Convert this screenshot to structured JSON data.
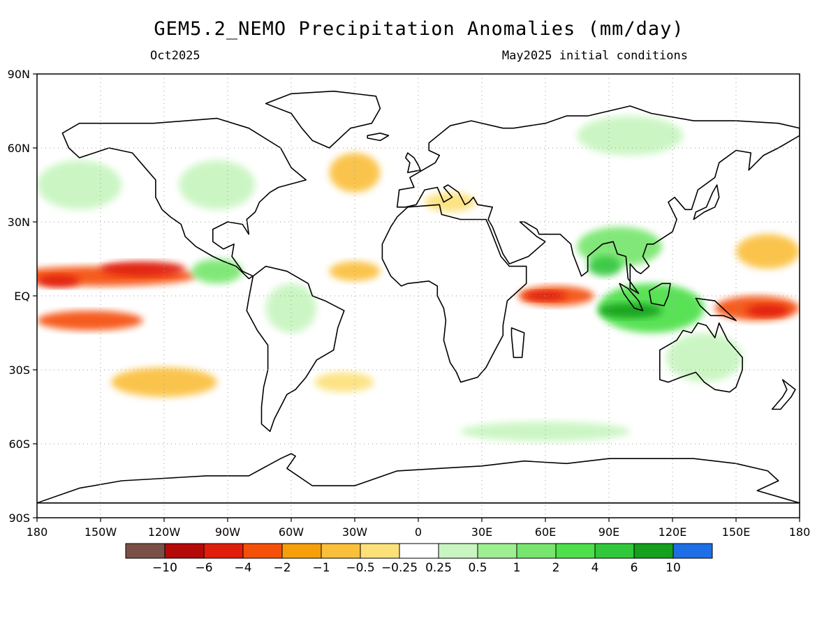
{
  "figure": {
    "title": "GEM5.2_NEMO Precipitation Anomalies (mm/day)",
    "valid_month": "Oct2025",
    "init": "May2025 initial conditions"
  },
  "axes": {
    "lat_labels": [
      "90N",
      "60N",
      "30N",
      "EQ",
      "30S",
      "60S",
      "90S"
    ],
    "lat_values": [
      90,
      60,
      30,
      0,
      -30,
      -60,
      -90
    ],
    "lon_labels": [
      "180",
      "150W",
      "120W",
      "90W",
      "60W",
      "30W",
      "0",
      "30E",
      "60E",
      "90E",
      "120E",
      "150E",
      "180"
    ],
    "lon_values": [
      -180,
      -150,
      -120,
      -90,
      -60,
      -30,
      0,
      30,
      60,
      90,
      120,
      150,
      180
    ]
  },
  "colors": {
    "anom": {
      "brown": "#7a5046",
      "dark_red": "#b40a0a",
      "red": "#e01e0c",
      "red_orange": "#f5500a",
      "orange": "#f5a00a",
      "light_orange": "#fac03c",
      "yellow": "#fce17a",
      "white": "#ffffff",
      "pale_green": "#c8f5c0",
      "light_green": "#9eee92",
      "green": "#78e66e",
      "mid_green": "#4ee04a",
      "deep_green": "#32c83c",
      "dark_green": "#15a01e",
      "blue": "#1e6ee6"
    }
  },
  "colorbar": {
    "colors": [
      "#7a5046",
      "#b40a0a",
      "#e01e0c",
      "#f5500a",
      "#f5a00a",
      "#fac03c",
      "#fce17a",
      "#ffffff",
      "#c8f5c0",
      "#9eee92",
      "#78e66e",
      "#4ee04a",
      "#32c83c",
      "#15a01e",
      "#1e6ee6"
    ],
    "labels": [
      "−10",
      "−6",
      "−4",
      "−2",
      "−1",
      "−0.5",
      "−0.25",
      "0.25",
      "0.5",
      "1",
      "2",
      "4",
      "6",
      "10"
    ]
  },
  "regions": [
    {
      "name": "pacific-itcz-dry",
      "lon": -150,
      "lat": 8,
      "rx": 45,
      "ry": 4,
      "level": "red_orange"
    },
    {
      "name": "pacific-itcz-dry-core",
      "lon": -130,
      "lat": 11,
      "rx": 20,
      "ry": 3,
      "level": "red"
    },
    {
      "name": "pacific-itcz-dry-west",
      "lon": -170,
      "lat": 6,
      "rx": 10,
      "ry": 2.5,
      "level": "red"
    },
    {
      "name": "s-pacific-dry",
      "lon": -155,
      "lat": -10,
      "rx": 25,
      "ry": 4,
      "level": "red_orange"
    },
    {
      "name": "se-pacific-dry",
      "lon": -120,
      "lat": -35,
      "rx": 25,
      "ry": 6,
      "level": "light_orange"
    },
    {
      "name": "w-pacific-dry",
      "lon": 160,
      "lat": -5,
      "rx": 20,
      "ry": 5,
      "level": "red_orange"
    },
    {
      "name": "w-pacific-dry-core",
      "lon": 165,
      "lat": -6,
      "rx": 10,
      "ry": 2.5,
      "level": "red"
    },
    {
      "name": "nw-pacific-dry",
      "lon": 165,
      "lat": 18,
      "rx": 15,
      "ry": 7,
      "level": "light_orange"
    },
    {
      "name": "w-indian-dry",
      "lon": 65,
      "lat": 0,
      "rx": 18,
      "ry": 4,
      "level": "red_orange"
    },
    {
      "name": "w-indian-dry-core",
      "lon": 60,
      "lat": 0,
      "rx": 10,
      "ry": 2,
      "level": "red"
    },
    {
      "name": "n-atlantic-dry",
      "lon": -30,
      "lat": 50,
      "rx": 12,
      "ry": 8,
      "level": "light_orange"
    },
    {
      "name": "trop-atlantic-dry",
      "lon": -30,
      "lat": 10,
      "rx": 12,
      "ry": 4,
      "level": "light_orange"
    },
    {
      "name": "sw-atlantic-dry",
      "lon": -35,
      "lat": -35,
      "rx": 14,
      "ry": 4,
      "level": "yellow"
    },
    {
      "name": "maritime-wet",
      "lon": 110,
      "lat": -5,
      "rx": 25,
      "ry": 10,
      "level": "mid_green"
    },
    {
      "name": "maritime-wet-core",
      "lon": 100,
      "lat": -6,
      "rx": 15,
      "ry": 3,
      "level": "dark_green"
    },
    {
      "name": "south-asia-wet",
      "lon": 95,
      "lat": 20,
      "rx": 20,
      "ry": 8,
      "level": "green"
    },
    {
      "name": "bay-bengal-wet",
      "lon": 88,
      "lat": 12,
      "rx": 8,
      "ry": 4,
      "level": "deep_green"
    },
    {
      "name": "australia-wet",
      "lon": 135,
      "lat": -25,
      "rx": 18,
      "ry": 10,
      "level": "pale_green"
    },
    {
      "name": "n-pacific-wet",
      "lon": -160,
      "lat": 45,
      "rx": 20,
      "ry": 10,
      "level": "pale_green"
    },
    {
      "name": "n-america-wet",
      "lon": -95,
      "lat": 45,
      "rx": 18,
      "ry": 10,
      "level": "pale_green"
    },
    {
      "name": "siberia-wet",
      "lon": 100,
      "lat": 65,
      "rx": 25,
      "ry": 8,
      "level": "pale_green"
    },
    {
      "name": "south-america-wet",
      "lon": -60,
      "lat": -5,
      "rx": 12,
      "ry": 10,
      "level": "pale_green"
    },
    {
      "name": "southern-ocean-wet",
      "lon": 60,
      "lat": -55,
      "rx": 40,
      "ry": 4,
      "level": "pale_green"
    },
    {
      "name": "e-pacific-wet",
      "lon": -95,
      "lat": 10,
      "rx": 12,
      "ry": 5,
      "level": "green"
    },
    {
      "name": "mediterranean-dry",
      "lon": 15,
      "lat": 38,
      "rx": 12,
      "ry": 4,
      "level": "yellow"
    }
  ]
}
